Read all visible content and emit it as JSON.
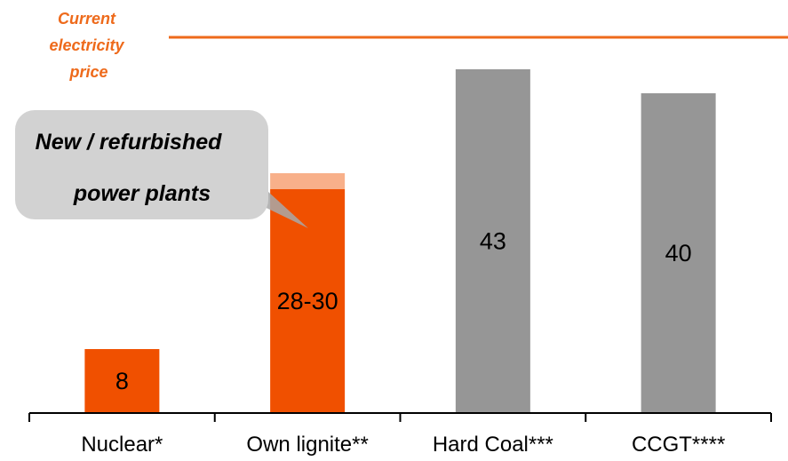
{
  "chart_data": {
    "type": "bar",
    "categories": [
      "Nuclear*",
      "Own lignite**",
      "Hard Coal***",
      "CCGT****"
    ],
    "values": [
      8,
      28,
      43,
      40
    ],
    "range_upper": [
      null,
      30,
      null,
      null
    ],
    "value_labels": [
      "8",
      "28-30",
      "43",
      "40"
    ],
    "reference_line": {
      "label_lines": [
        "Current",
        "electricity",
        "price"
      ],
      "value": 47
    },
    "callout": {
      "lines": [
        "New / refurbished",
        "power plants"
      ]
    },
    "title": "",
    "xlabel": "",
    "ylabel": "",
    "ylim": [
      0,
      50
    ],
    "grid": false,
    "legend": "none"
  },
  "colors": {
    "highlight": "#F05000",
    "highlight_range": "#F8B08A",
    "neutral": "#969696",
    "price_line": "#EE6A1B",
    "callout_fill": "#D2D2D2",
    "axis": "#000000"
  }
}
